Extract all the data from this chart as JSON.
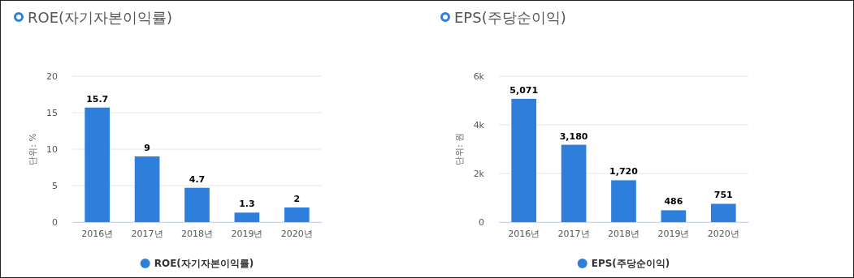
{
  "chart_data": [
    {
      "type": "bar",
      "title": "ROE(자기자본이익률)",
      "ylabel": "단위: %",
      "categories": [
        "2016년",
        "2017년",
        "2018년",
        "2019년",
        "2020년"
      ],
      "series": [
        {
          "name": "ROE(자기자본이익률)",
          "color": "#2e7fdb",
          "values": [
            15.7,
            9,
            4.7,
            1.3,
            2
          ]
        }
      ],
      "ylim": [
        0,
        20
      ],
      "yticks": [
        0,
        5,
        10,
        15,
        20
      ],
      "grid": "y",
      "legend": "bottom",
      "data_labels": true
    },
    {
      "type": "bar",
      "title": "EPS(주당순이익)",
      "ylabel": "단위: 원",
      "categories": [
        "2016년",
        "2017년",
        "2018년",
        "2019년",
        "2020년"
      ],
      "series": [
        {
          "name": "EPS(주당순이익)",
          "color": "#2e7fdb",
          "values": [
            5071,
            3180,
            1720,
            486,
            751
          ],
          "value_labels": [
            "5,071",
            "3,180",
            "1,720",
            "486",
            "751"
          ]
        }
      ],
      "ylim": [
        0,
        6000
      ],
      "yticks": [
        0,
        {
          "value": 2000,
          "label": "2k"
        },
        {
          "value": 4000,
          "label": "4k"
        },
        {
          "value": 6000,
          "label": "6k"
        }
      ],
      "grid": "y",
      "legend": "bottom"
    }
  ]
}
